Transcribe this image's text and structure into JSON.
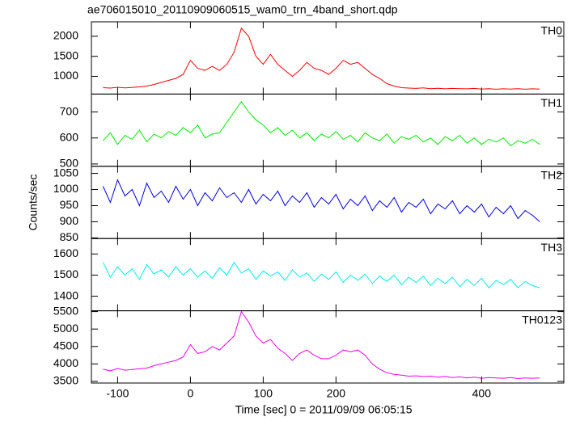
{
  "chart_data": [
    {
      "type": "line",
      "title": "ae706015010_20110909060515_wam0_trn_4band_short.qdp",
      "label": "TH0",
      "color": "#ff0000",
      "x": [
        -120,
        -110,
        -100,
        -90,
        -80,
        -70,
        -60,
        -50,
        -40,
        -30,
        -20,
        -10,
        0,
        10,
        20,
        30,
        40,
        50,
        60,
        70,
        80,
        90,
        100,
        110,
        120,
        130,
        140,
        150,
        160,
        170,
        180,
        190,
        200,
        210,
        220,
        230,
        240,
        250,
        260,
        270,
        280,
        290,
        300,
        310,
        320,
        330,
        340,
        350,
        360,
        370,
        380,
        390,
        400,
        410,
        420,
        430,
        440,
        450,
        460,
        470,
        480
      ],
      "values": [
        720,
        710,
        730,
        715,
        725,
        740,
        760,
        800,
        850,
        900,
        950,
        1050,
        1400,
        1200,
        1150,
        1250,
        1150,
        1300,
        1600,
        2200,
        2000,
        1500,
        1300,
        1550,
        1300,
        1150,
        1000,
        1150,
        1350,
        1200,
        1150,
        1050,
        1200,
        1400,
        1300,
        1350,
        1200,
        1050,
        950,
        820,
        760,
        720,
        710,
        700,
        715,
        695,
        705,
        690,
        700,
        695,
        690,
        700,
        685,
        695,
        680,
        690,
        685,
        695,
        680,
        690,
        685
      ],
      "xlim": [
        -136,
        513
      ],
      "xticks": [
        -100,
        0,
        100,
        200,
        400
      ],
      "ylim": [
        560,
        2360
      ],
      "yticks": [
        1000,
        1500,
        2000
      ]
    },
    {
      "type": "line",
      "label": "TH1",
      "color": "#00ee00",
      "x": [
        -120,
        -110,
        -100,
        -90,
        -80,
        -70,
        -60,
        -50,
        -40,
        -30,
        -20,
        -10,
        0,
        10,
        20,
        30,
        40,
        50,
        60,
        70,
        80,
        90,
        100,
        110,
        120,
        130,
        140,
        150,
        160,
        170,
        180,
        190,
        200,
        210,
        220,
        230,
        240,
        250,
        260,
        270,
        280,
        290,
        300,
        310,
        320,
        330,
        340,
        350,
        360,
        370,
        380,
        390,
        400,
        410,
        420,
        430,
        440,
        450,
        460,
        470,
        480
      ],
      "values": [
        590,
        620,
        575,
        610,
        595,
        630,
        585,
        615,
        600,
        625,
        610,
        640,
        620,
        650,
        600,
        615,
        620,
        660,
        700,
        740,
        700,
        670,
        650,
        620,
        640,
        610,
        630,
        600,
        620,
        590,
        615,
        600,
        625,
        595,
        610,
        585,
        620,
        600,
        590,
        615,
        580,
        605,
        595,
        610,
        585,
        600,
        575,
        605,
        590,
        610,
        580,
        600,
        575,
        595,
        585,
        600,
        570,
        590,
        580,
        595,
        575
      ],
      "xlim": [
        -136,
        513
      ],
      "xticks": [
        -100,
        0,
        100,
        200,
        400
      ],
      "ylim": [
        491,
        769
      ],
      "yticks": [
        500,
        600,
        700
      ]
    },
    {
      "type": "line",
      "label": "TH2",
      "ylabel": "Counts/sec",
      "color": "#0000ee",
      "x": [
        -120,
        -110,
        -100,
        -90,
        -80,
        -70,
        -60,
        -50,
        -40,
        -30,
        -20,
        -10,
        0,
        10,
        20,
        30,
        40,
        50,
        60,
        70,
        80,
        90,
        100,
        110,
        120,
        130,
        140,
        150,
        160,
        170,
        180,
        190,
        200,
        210,
        220,
        230,
        240,
        250,
        260,
        270,
        280,
        290,
        300,
        310,
        320,
        330,
        340,
        350,
        360,
        370,
        380,
        390,
        400,
        410,
        420,
        430,
        440,
        450,
        460,
        470,
        480
      ],
      "values": [
        1010,
        960,
        1030,
        980,
        1000,
        950,
        1020,
        975,
        995,
        960,
        1010,
        970,
        1000,
        950,
        990,
        965,
        1005,
        975,
        990,
        960,
        1000,
        955,
        985,
        965,
        995,
        950,
        980,
        960,
        990,
        945,
        975,
        955,
        985,
        940,
        970,
        950,
        980,
        935,
        965,
        945,
        975,
        930,
        960,
        945,
        970,
        925,
        955,
        940,
        965,
        925,
        950,
        930,
        955,
        915,
        945,
        925,
        950,
        910,
        935,
        920,
        900
      ],
      "xlim": [
        -136,
        513
      ],
      "xticks": [
        -100,
        0,
        100,
        200,
        400
      ],
      "ylim": [
        848,
        1072
      ],
      "yticks": [
        850,
        900,
        950,
        1000,
        1050
      ]
    },
    {
      "type": "line",
      "label": "TH3",
      "color": "#00eeee",
      "x": [
        -120,
        -110,
        -100,
        -90,
        -80,
        -70,
        -60,
        -50,
        -40,
        -30,
        -20,
        -10,
        0,
        10,
        20,
        30,
        40,
        50,
        60,
        70,
        80,
        90,
        100,
        110,
        120,
        130,
        140,
        150,
        160,
        170,
        180,
        190,
        200,
        210,
        220,
        230,
        240,
        250,
        260,
        270,
        280,
        290,
        300,
        310,
        320,
        330,
        340,
        350,
        360,
        370,
        380,
        390,
        400,
        410,
        420,
        430,
        440,
        450,
        460,
        470,
        480
      ],
      "values": [
        1560,
        1490,
        1540,
        1500,
        1530,
        1480,
        1550,
        1505,
        1525,
        1490,
        1540,
        1500,
        1530,
        1490,
        1520,
        1485,
        1535,
        1500,
        1560,
        1510,
        1530,
        1480,
        1520,
        1495,
        1515,
        1475,
        1525,
        1490,
        1510,
        1470,
        1505,
        1480,
        1515,
        1465,
        1500,
        1475,
        1505,
        1460,
        1495,
        1470,
        1500,
        1455,
        1490,
        1465,
        1495,
        1450,
        1485,
        1460,
        1490,
        1445,
        1480,
        1450,
        1485,
        1440,
        1475,
        1455,
        1480,
        1440,
        1470,
        1450,
        1440
      ],
      "xlim": [
        -136,
        513
      ],
      "xticks": [
        -100,
        0,
        100,
        200,
        400
      ],
      "ylim": [
        1331,
        1673
      ],
      "yticks": [
        1400,
        1500,
        1600
      ]
    },
    {
      "type": "line",
      "label": "TH0123",
      "xlabel": "Time [sec] 0 = 2011/09/09 06:05:15",
      "color": "#ee00ee",
      "x": [
        -120,
        -110,
        -100,
        -90,
        -80,
        -70,
        -60,
        -50,
        -40,
        -30,
        -20,
        -10,
        0,
        10,
        20,
        30,
        40,
        50,
        60,
        70,
        80,
        90,
        100,
        110,
        120,
        130,
        140,
        150,
        160,
        170,
        180,
        190,
        200,
        210,
        220,
        230,
        240,
        250,
        260,
        270,
        280,
        290,
        300,
        310,
        320,
        330,
        340,
        350,
        360,
        370,
        380,
        390,
        400,
        410,
        420,
        430,
        440,
        450,
        460,
        470,
        480
      ],
      "values": [
        3850,
        3800,
        3870,
        3820,
        3840,
        3860,
        3880,
        3950,
        4000,
        4050,
        4100,
        4200,
        4550,
        4300,
        4350,
        4500,
        4400,
        4600,
        4800,
        5500,
        5200,
        4800,
        4600,
        4700,
        4450,
        4300,
        4100,
        4300,
        4400,
        4250,
        4150,
        4150,
        4250,
        4400,
        4350,
        4400,
        4250,
        4000,
        3850,
        3750,
        3700,
        3680,
        3650,
        3660,
        3640,
        3650,
        3620,
        3640,
        3610,
        3630,
        3600,
        3620,
        3590,
        3610,
        3600,
        3590,
        3610,
        3580,
        3600,
        3590,
        3600
      ],
      "xlim": [
        -136,
        513
      ],
      "xticks": [
        -100,
        0,
        100,
        200,
        400
      ],
      "ylim": [
        3453,
        5523
      ],
      "yticks": [
        3500,
        4000,
        4500,
        5000,
        5500
      ]
    }
  ]
}
